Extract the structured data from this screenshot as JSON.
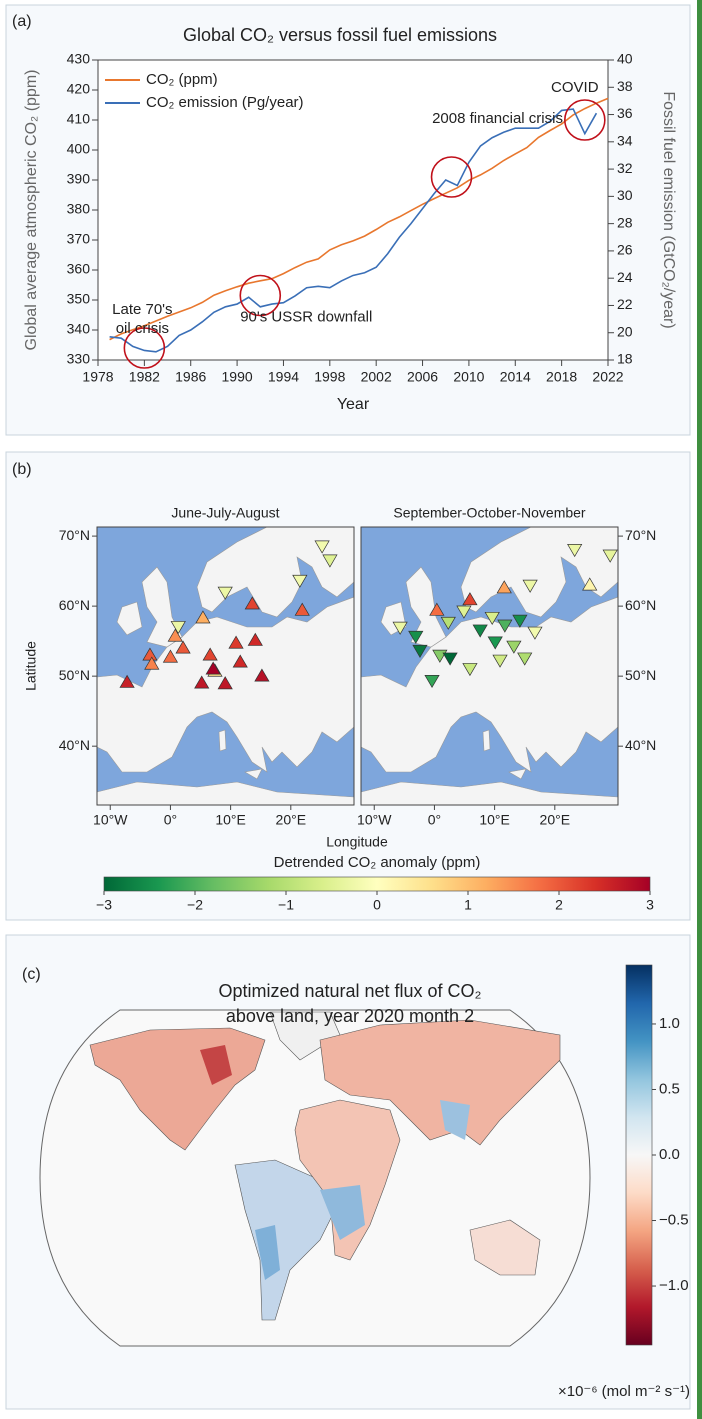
{
  "chart_data": [
    {
      "type": "line",
      "panel": "(a)",
      "title": "Global CO₂ versus fossil fuel emissions",
      "xlabel": "Year",
      "ylabel": "Global average atmospheric CO₂ (ppm)",
      "y2label": "Fossil fuel emission (GtCO₂/year)",
      "x": [
        1979,
        1980,
        1981,
        1982,
        1983,
        1984,
        1985,
        1986,
        1987,
        1988,
        1989,
        1990,
        1991,
        1992,
        1993,
        1994,
        1995,
        1996,
        1997,
        1998,
        1999,
        2000,
        2001,
        2002,
        2003,
        2004,
        2005,
        2006,
        2007,
        2008,
        2009,
        2010,
        2011,
        2012,
        2013,
        2014,
        2015,
        2016,
        2017,
        2018,
        2019,
        2020,
        2021,
        2022
      ],
      "series": [
        {
          "name": "CO₂ (ppm)",
          "color": "#e8772e",
          "values": [
            336.8,
            338.7,
            340.1,
            341.4,
            343.0,
            344.6,
            346.0,
            347.4,
            349.2,
            351.6,
            353.1,
            354.4,
            355.6,
            356.4,
            357.1,
            358.8,
            360.8,
            362.6,
            363.7,
            366.7,
            368.4,
            369.7,
            371.3,
            373.5,
            375.9,
            377.7,
            379.8,
            381.9,
            383.8,
            385.6,
            387.4,
            389.9,
            391.7,
            393.9,
            396.5,
            398.7,
            400.8,
            404.2,
            406.5,
            408.7,
            411.7,
            413.8,
            415.6,
            417.2
          ]
        },
        {
          "name": "CO₂ emission (Pg/year)",
          "color": "#3a6fb7",
          "axis": "y2",
          "values": [
            19.7,
            19.6,
            19.0,
            18.7,
            18.6,
            19.0,
            19.8,
            20.2,
            20.8,
            21.5,
            21.9,
            22.1,
            22.6,
            21.9,
            22.1,
            22.2,
            22.7,
            23.3,
            23.4,
            23.3,
            23.8,
            24.2,
            24.4,
            24.8,
            25.8,
            27.0,
            28.0,
            29.1,
            30.2,
            31.2,
            30.8,
            32.5,
            33.7,
            34.3,
            34.7,
            35.0,
            35.0,
            35.0,
            35.5,
            36.3,
            36.4,
            34.6,
            36.1,
            null
          ]
        }
      ],
      "xlim": [
        1978,
        2022
      ],
      "xticks": [
        1978,
        1982,
        1986,
        1990,
        1994,
        1998,
        2002,
        2006,
        2010,
        2014,
        2018,
        2022
      ],
      "ylim": [
        330,
        430
      ],
      "yticks": [
        330,
        340,
        350,
        360,
        370,
        380,
        390,
        400,
        410,
        420,
        430
      ],
      "y2lim": [
        18,
        40
      ],
      "y2ticks": [
        18,
        20,
        22,
        24,
        26,
        28,
        30,
        32,
        34,
        36,
        38,
        40
      ],
      "legend": "upper left",
      "annotations": [
        {
          "text": [
            "Late 70's",
            "oil crisis"
          ],
          "x": 1982,
          "y": 334
        },
        {
          "text": [
            "90's USSR downfall"
          ],
          "x": 1992,
          "y": 351.5
        },
        {
          "text": [
            "2008 financial crisis"
          ],
          "x": 2008.5,
          "y": 391
        },
        {
          "text": [
            "COVID"
          ],
          "x": 2020,
          "y": 410
        }
      ]
    },
    {
      "type": "map-markers",
      "panel": "(b)",
      "xlabel": "Longitude",
      "ylabel": "Latitude",
      "xlim": [
        -12.2,
        30.5
      ],
      "ylim": [
        31.6,
        71.3
      ],
      "xticks": [
        {
          "value": -10,
          "label": "10°W"
        },
        {
          "value": 0,
          "label": "0°"
        },
        {
          "value": 10,
          "label": "10°E"
        },
        {
          "value": 20,
          "label": "20°E"
        }
      ],
      "yticks": [
        {
          "value": 40,
          "label": "40°N"
        },
        {
          "value": 50,
          "label": "50°N"
        },
        {
          "value": 60,
          "label": "60°N"
        },
        {
          "value": 70,
          "label": "70°N"
        }
      ],
      "maps": [
        {
          "title": "June-July-August",
          "lon": [
            -7.2,
            -3.4,
            -3.1,
            0.0,
            0.8,
            2.1,
            1.3,
            5.4,
            6.6,
            7.4,
            7.1,
            10.9,
            14.1,
            15.2,
            11.6,
            5.2,
            9.1,
            13.6,
            21.9,
            9.1,
            26.5,
            25.2,
            21.5
          ],
          "lat": [
            49.1,
            53.0,
            51.7,
            52.7,
            55.7,
            54.0,
            57.1,
            58.3,
            53.0,
            50.7,
            51.0,
            54.7,
            55.1,
            50.0,
            52.0,
            49.0,
            48.9,
            60.3,
            59.4,
            62.0,
            66.6,
            68.6,
            63.7
          ],
          "values": [
            2.6,
            2.0,
            1.6,
            1.8,
            1.5,
            2.0,
            -0.3,
            1.2,
            2.2,
            0.6,
            3.0,
            2.3,
            2.5,
            2.8,
            2.5,
            2.7,
            2.7,
            2.2,
            2.0,
            -0.3,
            -0.5,
            -0.2,
            -0.2
          ]
        },
        {
          "title": "September-October-November",
          "lon": [
            -5.7,
            -3.1,
            -2.4,
            -0.4,
            0.9,
            2.6,
            2.3,
            4.9,
            5.9,
            7.6,
            9.6,
            10.1,
            11.7,
            13.2,
            14.2,
            16.7,
            5.9,
            10.9,
            15.0,
            0.4,
            11.6,
            15.9,
            25.8,
            23.3,
            29.2
          ],
          "lat": [
            57.0,
            55.7,
            53.7,
            49.4,
            53.0,
            52.6,
            57.7,
            59.3,
            60.9,
            56.6,
            58.4,
            54.9,
            57.3,
            54.3,
            58.0,
            56.3,
            51.1,
            52.3,
            52.6,
            59.4,
            62.6,
            63.0,
            63.0,
            68.1,
            67.3
          ],
          "values": [
            -0.3,
            -2.5,
            -2.8,
            -2.2,
            -1.5,
            -3.0,
            -1.0,
            -0.5,
            2.2,
            -2.6,
            -0.6,
            -2.4,
            -2.0,
            -1.3,
            -2.5,
            -0.2,
            -0.8,
            -0.7,
            -1.1,
            1.8,
            1.3,
            -0.3,
            0.2,
            -0.3,
            -0.4
          ]
        }
      ],
      "colorbar": {
        "label": "Detrended CO₂ anomaly (ppm)",
        "lim": [
          -3,
          3
        ],
        "ticks": [
          {
            "value": -3,
            "label": "−3"
          },
          {
            "value": -2,
            "label": "−2"
          },
          {
            "value": -1,
            "label": "−1"
          },
          0,
          1,
          2,
          3
        ],
        "colors": [
          "#006837",
          "#1a9850",
          "#66bd63",
          "#a6d96a",
          "#d9ef8b",
          "#ffffbf",
          "#fee08b",
          "#fdae61",
          "#f46d43",
          "#d73027",
          "#a50026"
        ]
      }
    },
    {
      "type": "map-field",
      "panel": "(c)",
      "title": [
        "Optimized natural net flux of CO₂",
        "above land, year 2020 month 2"
      ],
      "colorbar": {
        "unit": "×10⁻⁶ (mol m⁻² s⁻¹)",
        "lim": [
          -1.45,
          1.45
        ],
        "ticks": [
          {
            "value": 1,
            "label": "1.0"
          },
          0.5,
          {
            "value": 0,
            "label": "0.0"
          },
          {
            "value": -0.5,
            "label": "−0.5"
          },
          {
            "value": -1,
            "label": "−1.0"
          }
        ],
        "colors": [
          "#67001f",
          "#b2182b",
          "#d6604d",
          "#f4a582",
          "#fddbc7",
          "#f7f7f7",
          "#d1e5f0",
          "#92c5de",
          "#4393c3",
          "#2166ac",
          "#053061"
        ]
      }
    }
  ]
}
